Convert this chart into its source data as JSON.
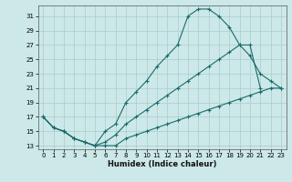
{
  "xlabel": "Humidex (Indice chaleur)",
  "bg_color": "#cce8e8",
  "grid_color": "#aacccc",
  "line_color": "#1a6b6b",
  "xlim": [
    -0.5,
    23.5
  ],
  "ylim": [
    12.5,
    32.5
  ],
  "xticks": [
    0,
    1,
    2,
    3,
    4,
    5,
    6,
    7,
    8,
    9,
    10,
    11,
    12,
    13,
    14,
    15,
    16,
    17,
    18,
    19,
    20,
    21,
    22,
    23
  ],
  "yticks": [
    13,
    15,
    17,
    19,
    21,
    23,
    25,
    27,
    29,
    31
  ],
  "curve1_x": [
    0,
    1,
    2,
    3,
    4,
    5,
    6,
    7,
    8,
    9,
    10,
    11,
    12,
    13,
    14,
    15,
    16,
    17,
    18,
    19,
    20,
    21,
    22,
    23
  ],
  "curve1_y": [
    17,
    15.5,
    15,
    14,
    13.5,
    13,
    15,
    16,
    19,
    20.5,
    22,
    24,
    25.5,
    27,
    31,
    32,
    32,
    31,
    29.5,
    27,
    25.5,
    23,
    22,
    21
  ],
  "curve2_x": [
    0,
    1,
    2,
    3,
    4,
    5,
    6,
    7,
    8,
    9,
    10,
    11,
    12,
    13,
    14,
    15,
    16,
    17,
    18,
    19,
    20,
    21
  ],
  "curve2_y": [
    17,
    15.5,
    15,
    14,
    13.5,
    13,
    13.5,
    14.5,
    16,
    17,
    18,
    19,
    20,
    21,
    22,
    23,
    24,
    25,
    26,
    27,
    27,
    21
  ],
  "curve3_x": [
    0,
    1,
    2,
    3,
    4,
    5,
    6,
    7,
    8,
    9,
    10,
    11,
    12,
    13,
    14,
    15,
    16,
    17,
    18,
    19,
    20,
    21,
    22,
    23
  ],
  "curve3_y": [
    17,
    15.5,
    15,
    14,
    13.5,
    13,
    13,
    13,
    14,
    14.5,
    15,
    15.5,
    16,
    16.5,
    17,
    17.5,
    18,
    18.5,
    19,
    19.5,
    20,
    20.5,
    21,
    21
  ]
}
